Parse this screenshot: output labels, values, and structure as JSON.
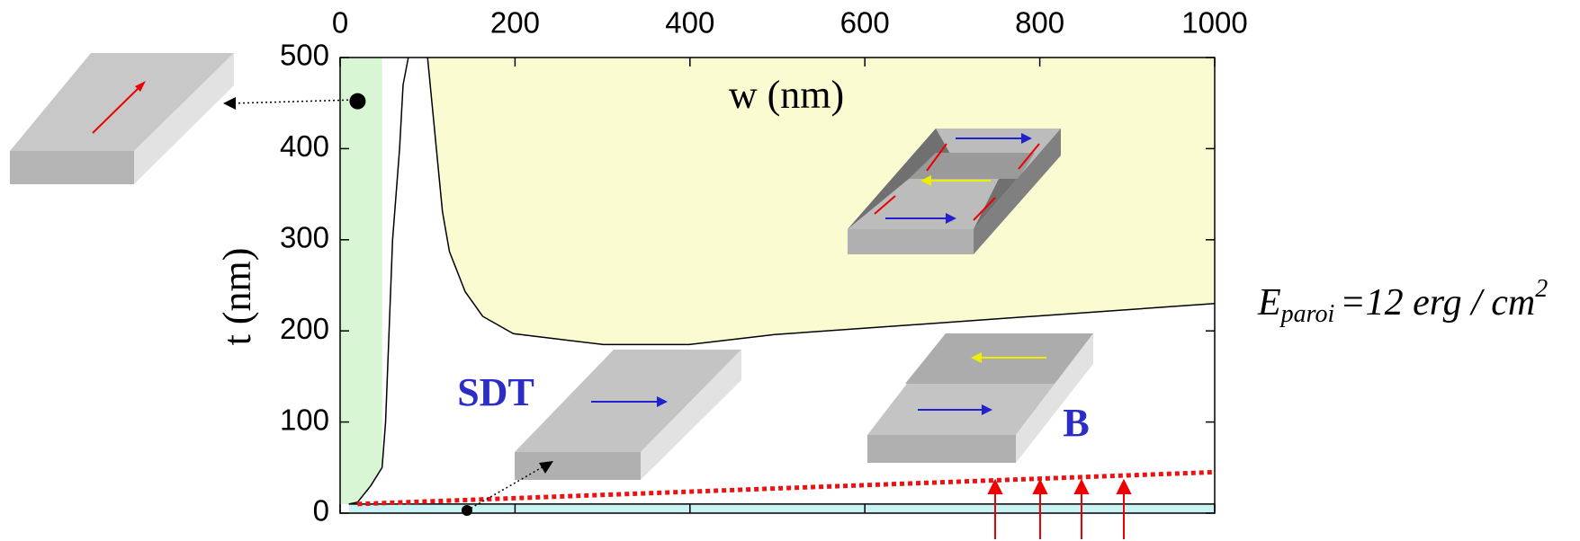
{
  "chart_data": {
    "type": "region",
    "xlabel": "w (nm)",
    "ylabel": "t (nm)",
    "xlim": [
      0,
      1000
    ],
    "ylim": [
      0,
      500
    ],
    "xticks": [
      0,
      200,
      400,
      600,
      800,
      1000
    ],
    "yticks": [
      0,
      100,
      200,
      300,
      400,
      500
    ],
    "areas": [
      {
        "color": "#d8f5d4",
        "x": [
          0,
          10,
          20,
          35,
          48,
          48,
          0
        ],
        "y": [
          10,
          10,
          12,
          30,
          50,
          500,
          500
        ]
      },
      {
        "color": "#fbfbd2",
        "x": [
          100,
          117,
          125,
          143,
          163,
          198,
          301,
          399,
          497,
          1000,
          1000
        ],
        "y": [
          500,
          331,
          287,
          243,
          216,
          197,
          185,
          185,
          196,
          230,
          500
        ]
      },
      {
        "color": "#c9f2f5",
        "x": [
          10,
          1000,
          1000,
          10
        ],
        "y": [
          0,
          0,
          10,
          10
        ]
      }
    ],
    "series": [
      {
        "color": "#000000",
        "x": [
          10,
          20,
          35,
          48,
          52,
          60,
          68,
          72,
          78
        ],
        "y": [
          10,
          12,
          30,
          50,
          100,
          300,
          400,
          470,
          500
        ]
      },
      {
        "color": "#000000",
        "x": [
          100,
          117,
          125,
          143,
          163,
          198,
          301,
          399,
          497,
          1000
        ],
        "y": [
          500,
          331,
          287,
          243,
          216,
          197,
          185,
          185,
          196,
          230
        ]
      },
      {
        "color": "#000000",
        "x": [
          10,
          1000
        ],
        "y": [
          10,
          10
        ]
      },
      {
        "color": "#ee1111",
        "dashed": true,
        "x": [
          20,
          1000
        ],
        "y": [
          10,
          45
        ]
      }
    ],
    "points": {
      "color": "#000000",
      "x": [
        20,
        145
      ],
      "y": [
        452,
        3
      ]
    },
    "labels": {
      "sdt": "SDT",
      "b": "B"
    },
    "formula": {
      "symbol": "E",
      "subscript": "paroi",
      "body": "=12 erg / cm",
      "exponent": "2"
    }
  }
}
